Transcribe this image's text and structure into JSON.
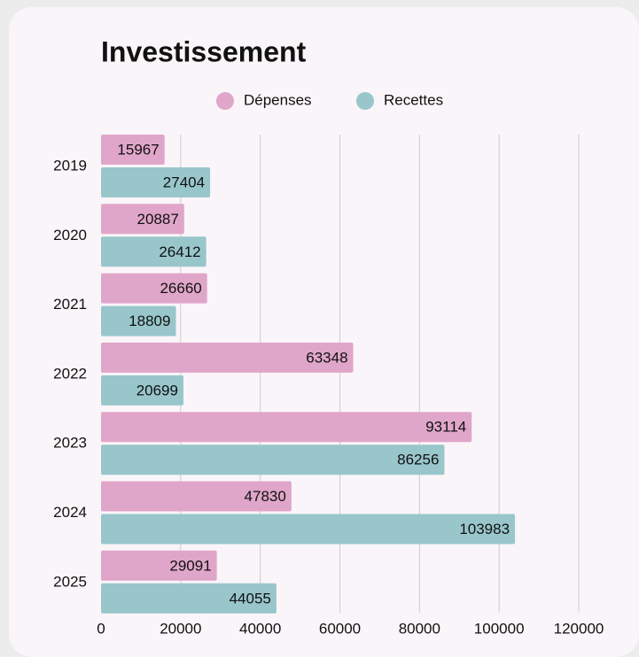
{
  "chart_data": {
    "type": "barh",
    "title": "Investissement",
    "categories": [
      "2019",
      "2020",
      "2021",
      "2022",
      "2023",
      "2024",
      "2025"
    ],
    "series": [
      {
        "name": "Dépenses",
        "color": "#e0a6c9",
        "values": [
          15967,
          20887,
          26660,
          63348,
          93114,
          47830,
          29091
        ]
      },
      {
        "name": "Recettes",
        "color": "#98c6cb",
        "values": [
          27404,
          26412,
          18809,
          20699,
          86256,
          103983,
          44055
        ]
      }
    ],
    "xlim": [
      0,
      120000
    ],
    "xticks": [
      0,
      20000,
      40000,
      60000,
      80000,
      100000,
      120000
    ],
    "grid": true,
    "legend": "top"
  }
}
